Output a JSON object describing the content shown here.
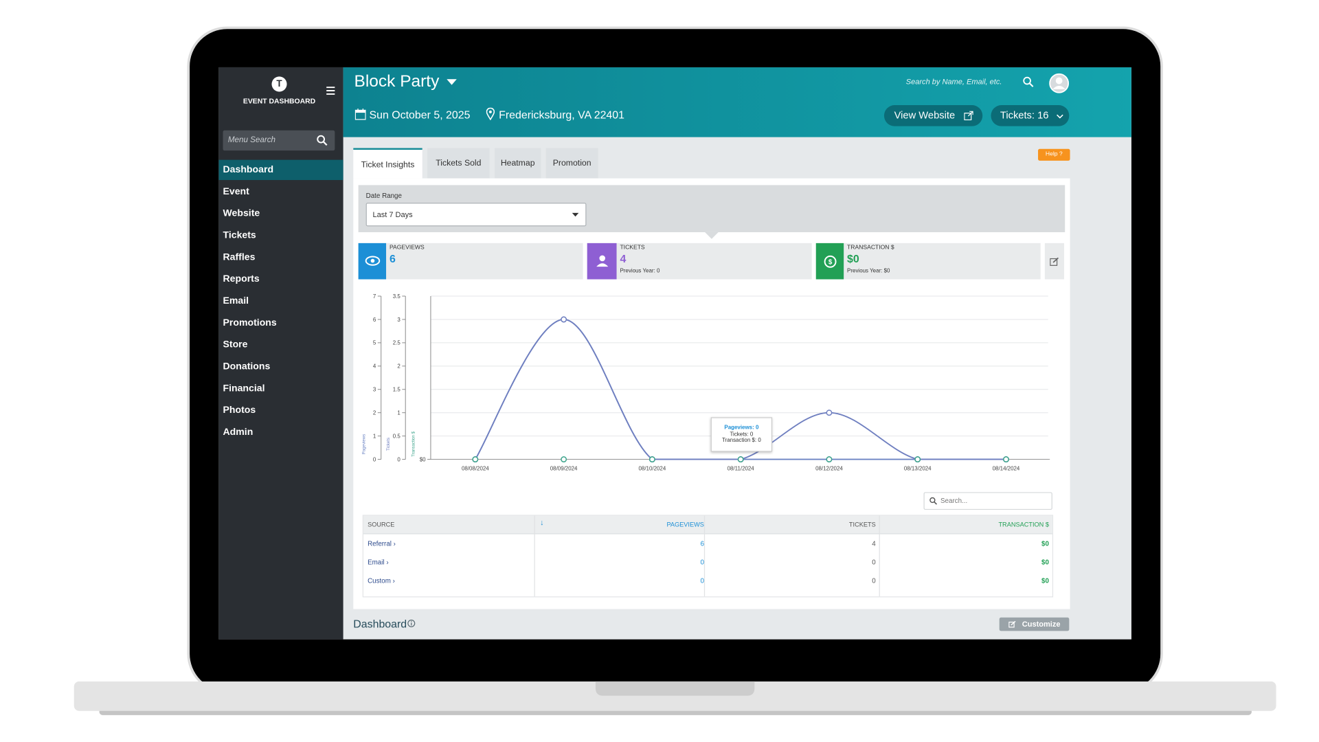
{
  "sidebar": {
    "logo": "T",
    "title": "EVENT DASHBOARD",
    "search_placeholder": "Menu Search",
    "menu": [
      "Dashboard",
      "Event",
      "Website",
      "Tickets",
      "Raffles",
      "Reports",
      "Email",
      "Promotions",
      "Store",
      "Donations",
      "Financial",
      "Photos",
      "Admin"
    ]
  },
  "header": {
    "event_name": "Block Party",
    "date": "Sun October 5, 2025",
    "location": "Fredericksburg, VA 22401",
    "search_placeholder": "Search by Name, Email, etc.",
    "view_website": "View Website",
    "tickets_button": "Tickets: 16"
  },
  "tabs": [
    "Ticket Insights",
    "Tickets Sold",
    "Heatmap",
    "Promotion"
  ],
  "help": "Help",
  "date_range": {
    "label": "Date Range",
    "value": "Last 7 Days"
  },
  "stats": [
    {
      "label": "PAGEVIEWS",
      "value": 6,
      "color": "#1c8fd6"
    },
    {
      "label": "TICKETS",
      "value": 4,
      "previous": "Previous Year: 0",
      "color": "#8e5fd3"
    },
    {
      "label": "TRANSACTION $",
      "value": "$0",
      "previous": "Previous Year: $0",
      "color": "#22a055"
    }
  ],
  "chart": {
    "type": "line",
    "categories": [
      "08/08/2024",
      "08/09/2024",
      "08/10/2024",
      "08/11/2024",
      "08/12/2024",
      "08/13/2024",
      "08/14/2024"
    ],
    "series": [
      {
        "name": "Pageviews",
        "axis": "y",
        "color": "#6c84c4",
        "values": [
          0,
          6,
          0,
          0,
          0,
          0,
          0
        ]
      },
      {
        "name": "Tickets",
        "axis": "y2",
        "color": "#6f7fc0",
        "values": [
          0,
          3,
          0,
          0,
          1,
          0,
          0
        ]
      },
      {
        "name": "Transaction $",
        "axis": "y3",
        "color": "#3aa38a",
        "values": [
          0,
          0,
          0,
          0,
          0,
          0,
          0
        ]
      }
    ],
    "ylim": [
      0,
      7
    ],
    "yticks": [
      0,
      1,
      2,
      3,
      4,
      5,
      6,
      7
    ],
    "y2lim": [
      0,
      3.5
    ],
    "y2ticks": [
      0,
      0.5,
      1,
      1.5,
      2,
      2.5,
      3,
      3.5
    ],
    "y3ticks": [
      {
        "value": 0,
        "label": "$0"
      }
    ],
    "grid": true,
    "tooltip": [
      "Pageviews: 0",
      "Tickets: 0",
      "Transaction $: 0"
    ]
  },
  "table": {
    "search_placeholder": "Search...",
    "columns": [
      "SOURCE",
      "PAGEVIEWS",
      "TICKETS",
      "TRANSACTION $"
    ],
    "rows": [
      [
        "Referral",
        6,
        4,
        "$0"
      ],
      [
        "Email",
        0,
        0,
        "$0"
      ],
      [
        "Custom",
        0,
        0,
        "$0"
      ]
    ]
  },
  "footer": {
    "title": "Dashboard",
    "customize": "Customize"
  }
}
